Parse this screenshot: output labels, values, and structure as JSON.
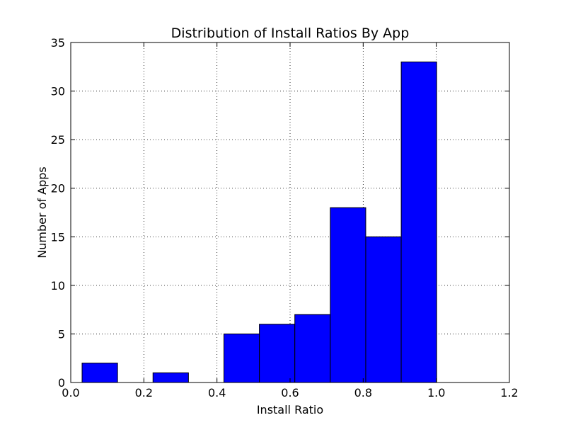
{
  "chart_data": {
    "type": "bar",
    "title": "Distribution of Install Ratios By App",
    "xlabel": "Install Ratio",
    "ylabel": "Number of Apps",
    "xlim": [
      0.0,
      1.2
    ],
    "ylim": [
      0,
      35
    ],
    "xticks": [
      "0.0",
      "0.2",
      "0.4",
      "0.6",
      "0.8",
      "1.0",
      "1.2"
    ],
    "yticks": [
      "0",
      "5",
      "10",
      "15",
      "20",
      "25",
      "30",
      "35"
    ],
    "grid": true,
    "bar_color": "#0000ff",
    "bins": [
      {
        "x0": 0.031,
        "x1": 0.128,
        "value": 2
      },
      {
        "x0": 0.128,
        "x1": 0.225,
        "value": 0
      },
      {
        "x0": 0.225,
        "x1": 0.322,
        "value": 1
      },
      {
        "x0": 0.322,
        "x1": 0.419,
        "value": 0
      },
      {
        "x0": 0.419,
        "x1": 0.516,
        "value": 5
      },
      {
        "x0": 0.516,
        "x1": 0.613,
        "value": 6
      },
      {
        "x0": 0.613,
        "x1": 0.71,
        "value": 7
      },
      {
        "x0": 0.71,
        "x1": 0.807,
        "value": 18
      },
      {
        "x0": 0.807,
        "x1": 0.904,
        "value": 15
      },
      {
        "x0": 0.904,
        "x1": 1.001,
        "value": 33
      }
    ]
  }
}
